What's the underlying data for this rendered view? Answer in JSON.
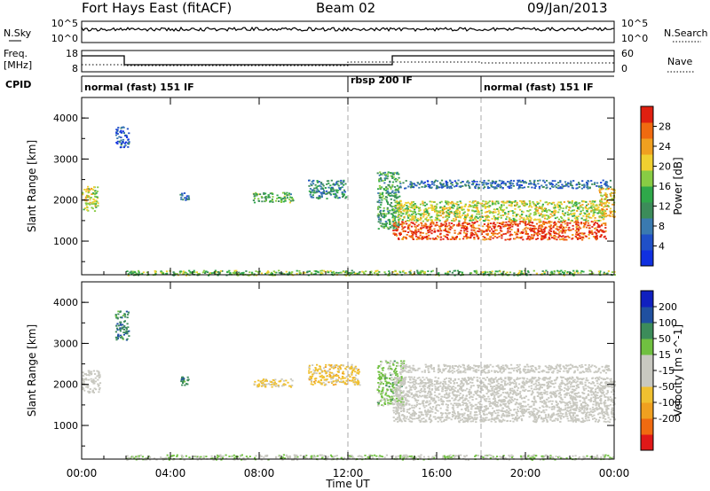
{
  "header": {
    "station": "Fort Hays East (fitACF)",
    "beam": "Beam 02",
    "date": "09/Jan/2013"
  },
  "top_panels": {
    "nsky_label": "N.Sky",
    "nsky_ticks": [
      "10^5",
      "10^0"
    ],
    "nsearch_label": "N.Search",
    "nsearch_ticks": [
      "10^5",
      "10^0"
    ],
    "freq_label_1": "Freq.",
    "freq_label_2": "[MHz]",
    "freq_ticks": [
      "18",
      "8"
    ],
    "nave_label": "Nave",
    "nave_ticks": [
      "60",
      "0"
    ],
    "cpid_label": "CPID",
    "cpid_segments": [
      {
        "name": "normal (fast) 151 IF",
        "start": 0,
        "end": 12
      },
      {
        "name": "rbsp 200 IF",
        "start": 12,
        "end": 18
      },
      {
        "name": "normal (fast) 151 IF",
        "start": 18,
        "end": 24
      }
    ]
  },
  "x_axis": {
    "label": "Time UT",
    "ticks": [
      "00:00",
      "04:00",
      "08:00",
      "12:00",
      "16:00",
      "20:00",
      "00:00"
    ],
    "range_hours": [
      0,
      24
    ]
  },
  "chart_data": [
    {
      "type": "heatmap",
      "title": "",
      "xlabel": "Time UT",
      "ylabel": "Slant Range [km]",
      "y_ticks": [
        "1000",
        "2000",
        "3000",
        "4000"
      ],
      "xlim": [
        0,
        24
      ],
      "ylim": [
        180,
        4500
      ],
      "colorbar": {
        "label": "Power [dB]",
        "ticks": [
          "4",
          "8",
          "12",
          "16",
          "20",
          "24",
          "28"
        ],
        "range": [
          0,
          30
        ],
        "colors": [
          "#1030e0",
          "#2050c8",
          "#3a7ab0",
          "#3c8c5a",
          "#2fa84a",
          "#88cc44",
          "#f0d030",
          "#f0a020",
          "#f06a10",
          "#e02010"
        ]
      },
      "regions": [
        {
          "t0": 0.0,
          "t1": 0.7,
          "r0": 1750,
          "r1": 2350,
          "level": 0.6
        },
        {
          "t0": 4.4,
          "t1": 4.8,
          "r0": 2000,
          "r1": 2200,
          "level": 0.2
        },
        {
          "t0": 7.7,
          "t1": 9.5,
          "r0": 1950,
          "r1": 2200,
          "level": 0.45
        },
        {
          "t0": 10.2,
          "t1": 11.9,
          "r0": 2050,
          "r1": 2500,
          "level": 0.3
        },
        {
          "t0": 13.3,
          "t1": 14.3,
          "r0": 1300,
          "r1": 2700,
          "level": 0.4
        },
        {
          "t0": 14.0,
          "t1": 23.6,
          "r0": 1050,
          "r1": 1500,
          "level": 0.95
        },
        {
          "t0": 14.0,
          "t1": 23.6,
          "r0": 1500,
          "r1": 2000,
          "level": 0.6
        },
        {
          "t0": 14.3,
          "t1": 23.8,
          "r0": 2300,
          "r1": 2500,
          "level": 0.2
        },
        {
          "t0": 23.3,
          "t1": 24.0,
          "r0": 1600,
          "r1": 2300,
          "level": 0.7
        },
        {
          "t0": 1.5,
          "t1": 2.1,
          "r0": 3300,
          "r1": 3800,
          "level": 0.15
        },
        {
          "t0": 2.0,
          "t1": 24.0,
          "r0": 180,
          "r1": 300,
          "level": 0.5
        }
      ]
    },
    {
      "type": "heatmap",
      "title": "",
      "xlabel": "Time UT",
      "ylabel": "Slant Range [km]",
      "y_ticks": [
        "1000",
        "2000",
        "3000",
        "4000"
      ],
      "xlim": [
        0,
        24
      ],
      "ylim": [
        180,
        4500
      ],
      "colorbar": {
        "label": "Velocity [m s^-1]",
        "ticks": [
          "200",
          "100",
          "50",
          "15",
          "-15",
          "-50",
          "-100",
          "-200"
        ],
        "range": [
          -250,
          250
        ],
        "colors": [
          "#e01818",
          "#f06a10",
          "#f0a020",
          "#f0c030",
          "#c8c8c0",
          "#c8c8c0",
          "#70c040",
          "#3c8c5a",
          "#2050a0",
          "#1020c0"
        ]
      },
      "regions": [
        {
          "t0": 0.0,
          "t1": 0.8,
          "r0": 1800,
          "r1": 2350,
          "level": 0.0
        },
        {
          "t0": 4.4,
          "t1": 4.8,
          "r0": 2000,
          "r1": 2200,
          "level": 0.55
        },
        {
          "t0": 7.7,
          "t1": 9.5,
          "r0": 1950,
          "r1": 2150,
          "level": -0.25
        },
        {
          "t0": 10.2,
          "t1": 12.5,
          "r0": 2000,
          "r1": 2500,
          "level": -0.3
        },
        {
          "t0": 13.3,
          "t1": 14.5,
          "r0": 1500,
          "r1": 2600,
          "level": 0.3
        },
        {
          "t0": 14.0,
          "t1": 24.0,
          "r0": 1100,
          "r1": 2200,
          "level": 0.0
        },
        {
          "t0": 14.3,
          "t1": 23.8,
          "r0": 2300,
          "r1": 2500,
          "level": 0.0
        },
        {
          "t0": 1.5,
          "t1": 2.1,
          "r0": 3100,
          "r1": 3800,
          "level": 0.6
        },
        {
          "t0": 2.0,
          "t1": 24.0,
          "r0": 180,
          "r1": 300,
          "level": 0.2
        }
      ]
    }
  ]
}
